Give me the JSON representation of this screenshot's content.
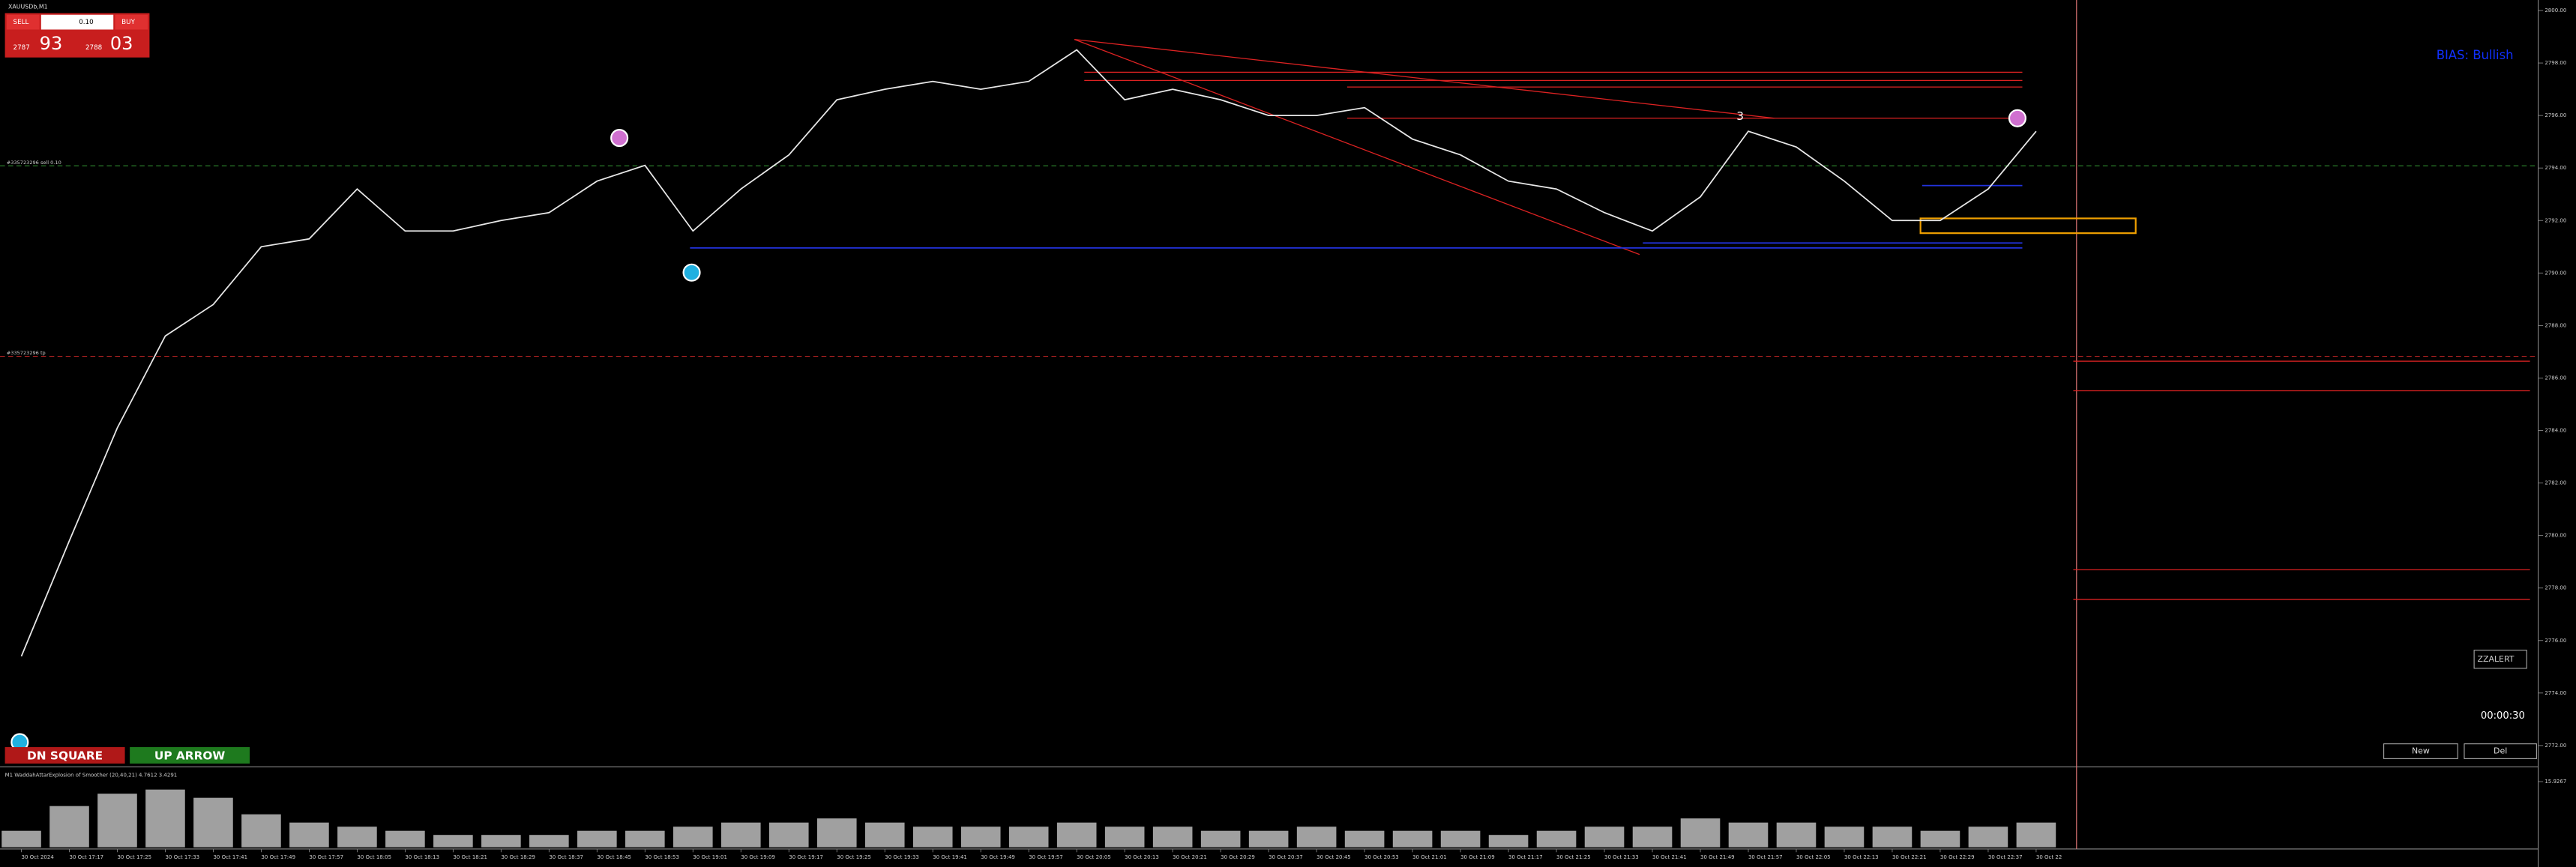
{
  "window": {
    "symbol": "XAUUSDb,M1",
    "bias": "BIAS: Bullish",
    "alert": "ZZALERT",
    "timer": "00:00:30",
    "new": "New",
    "del": "Del",
    "dn_square": "DN SQUARE",
    "up_arrow": "UP ARROW",
    "sell_order": "#335723296 sell 0.10",
    "tp_order": "#335723296 tp",
    "wave": "3"
  },
  "trade_panel": {
    "sell": "SELL",
    "buy": "BUY",
    "lots": "0.10",
    "bid_main": "2787",
    "bid_big": "93",
    "ask_main": "2788",
    "ask_big": "03"
  },
  "chart_data": [
    {
      "type": "line",
      "color": "#e8e8e8",
      "categories": [
        "30 Oct 2024",
        "30 Oct 17:17",
        "30 Oct 17:25",
        "30 Oct 17:33",
        "30 Oct 17:41",
        "30 Oct 17:49",
        "30 Oct 17:57",
        "30 Oct 18:05",
        "30 Oct 18:13",
        "30 Oct 18:21",
        "30 Oct 18:29",
        "30 Oct 18:37",
        "30 Oct 18:45",
        "30 Oct 18:53",
        "30 Oct 19:01",
        "30 Oct 19:09",
        "30 Oct 19:17",
        "30 Oct 19:25",
        "30 Oct 19:33",
        "30 Oct 19:41",
        "30 Oct 19:49",
        "30 Oct 19:57",
        "30 Oct 20:05",
        "30 Oct 20:13",
        "30 Oct 20:21",
        "30 Oct 20:29",
        "30 Oct 20:37",
        "30 Oct 20:45",
        "30 Oct 20:53",
        "30 Oct 21:01",
        "30 Oct 21:09",
        "30 Oct 21:17",
        "30 Oct 21:25",
        "30 Oct 21:33",
        "30 Oct 21:41",
        "30 Oct 21:49",
        "30 Oct 21:57",
        "30 Oct 22:05",
        "30 Oct 22:13",
        "30 Oct 22:21",
        "30 Oct 22:29",
        "30 Oct 22:37",
        "30 Oct 22"
      ],
      "values": [
        2775.4,
        2779.8,
        2784.1,
        2787.6,
        2788.8,
        2791.0,
        2791.3,
        2793.2,
        2791.6,
        2791.6,
        2792.0,
        2792.3,
        2793.5,
        2794.1,
        2791.6,
        2793.2,
        2794.5,
        2796.6,
        2797.0,
        2797.3,
        2797.0,
        2797.3,
        2798.5,
        2796.6,
        2797.0,
        2796.6,
        2796.0,
        2796.0,
        2796.3,
        2795.1,
        2794.5,
        2793.5,
        2793.2,
        2792.3,
        2791.6,
        2792.9,
        2795.4,
        2794.8,
        2793.5,
        2792.0,
        2792.0,
        2793.2,
        2795.4
      ],
      "ylim": [
        2771.0,
        2800.4
      ],
      "yticks": [
        {
          "value": 2772,
          "label": "2772.00"
        },
        {
          "value": 2774,
          "label": "2774.00"
        },
        {
          "value": 2776,
          "label": "2776.00"
        },
        {
          "value": 2778,
          "label": "2778.00"
        },
        {
          "value": 2780,
          "label": "2780.00"
        },
        {
          "value": 2782,
          "label": "2782.00"
        },
        {
          "value": 2784,
          "label": "2784.00"
        },
        {
          "value": 2786,
          "label": "2786.00"
        },
        {
          "value": 2788,
          "label": "2788.00"
        },
        {
          "value": 2790,
          "label": "2790.00"
        },
        {
          "value": 2792,
          "label": "2792.00"
        },
        {
          "value": 2794,
          "label": "2794.00"
        },
        {
          "value": 2796,
          "label": "2796.00"
        },
        {
          "value": 2798,
          "label": "2798.00"
        },
        {
          "value": 2800,
          "label": "2800.00"
        }
      ]
    },
    {
      "type": "bar",
      "title": "M1  WaddahAttarExplosion of Smoother (20,40,21) 4.7612 3.4291",
      "color": "#c8c8c8",
      "values": [
        4,
        10,
        13,
        14,
        12,
        8,
        6,
        5,
        4,
        3,
        3,
        3,
        4,
        4,
        5,
        6,
        6,
        7,
        6,
        5,
        5,
        5,
        6,
        5,
        5,
        4,
        4,
        5,
        4,
        4,
        4,
        3,
        4,
        5,
        5,
        7,
        6,
        6,
        5,
        5,
        4,
        5,
        6
      ],
      "ylim": [
        0,
        15.9267
      ],
      "yticks": [
        15.9267
      ]
    }
  ]
}
